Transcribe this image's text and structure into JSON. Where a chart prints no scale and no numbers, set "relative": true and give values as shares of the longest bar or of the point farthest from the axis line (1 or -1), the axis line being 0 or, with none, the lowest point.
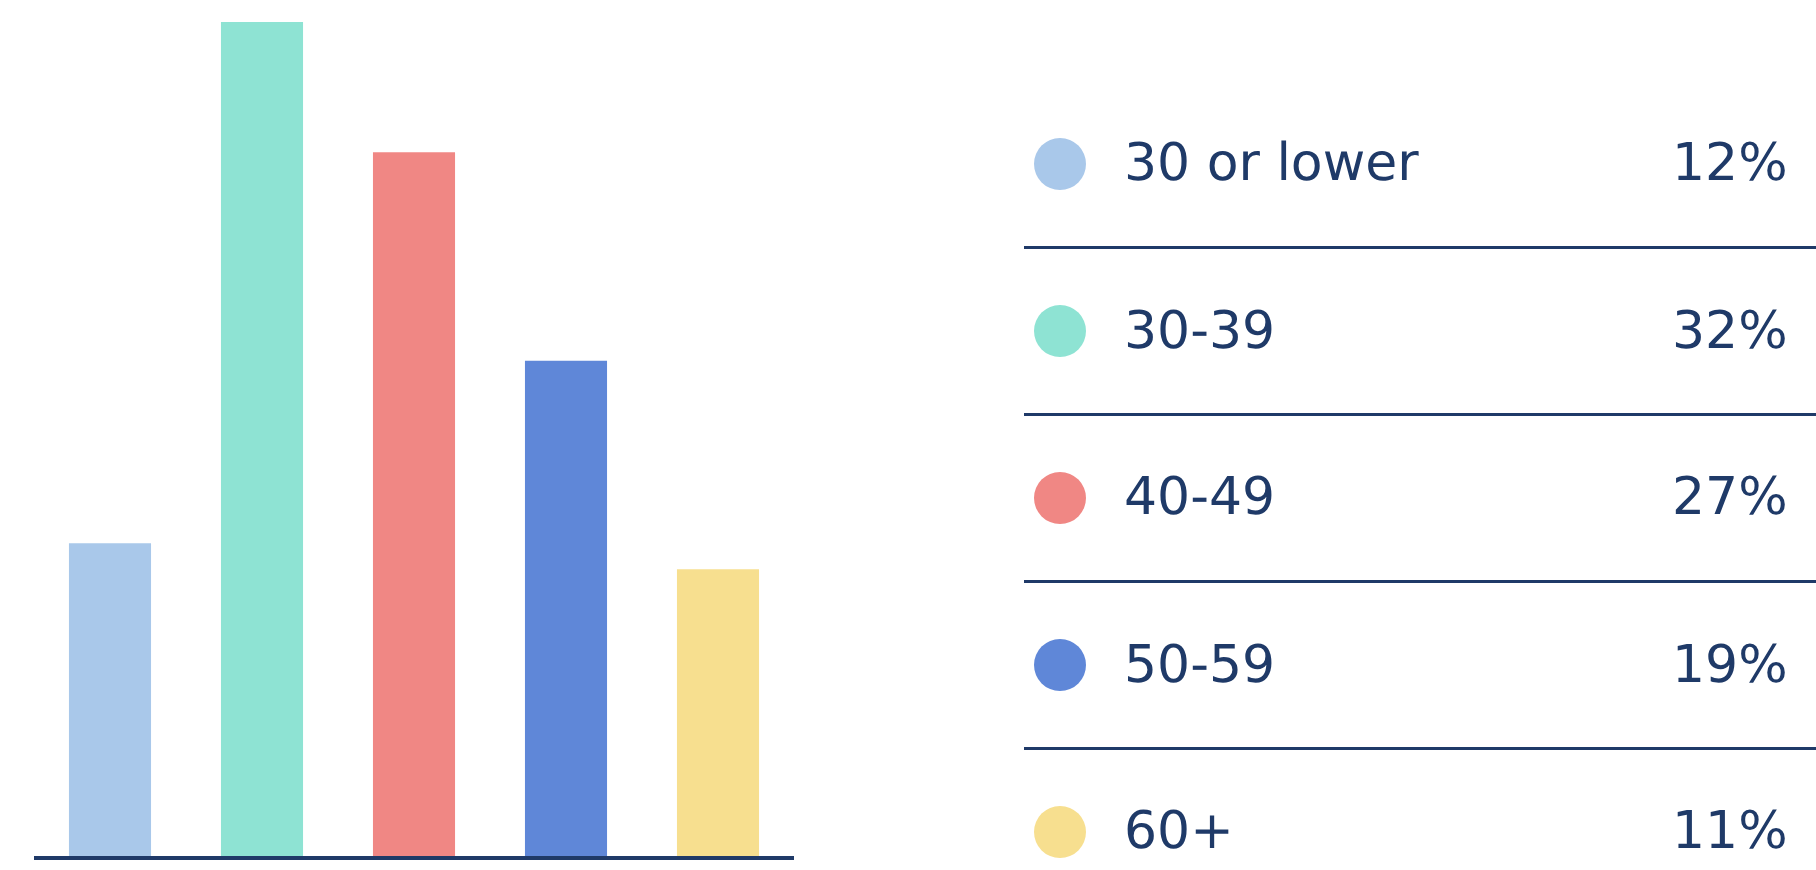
{
  "chart_data": [
    {
      "type": "bar",
      "relative": true,
      "categories": [
        null,
        null,
        null,
        null,
        null
      ],
      "values": [
        0.375,
        1,
        0.84375,
        0.59375,
        0.34375
      ],
      "colors": [
        "#a9c8ea",
        "#8ee3d3",
        "#f08784",
        "#5f87d8",
        "#f7df8f"
      ]
    },
    {
      "type": "other",
      "categories": [
        "30 or lower",
        "30-39",
        "40-49",
        "50-59",
        "60+"
      ],
      "values": [
        12,
        32,
        27,
        19,
        11
      ],
      "value_labels": [
        "12%",
        "32%",
        "27%",
        "19%",
        "11%"
      ],
      "colors": [
        "#a9c8ea",
        "#8ee3d3",
        "#f08784",
        "#5f87d8",
        "#f7df8f"
      ]
    }
  ]
}
